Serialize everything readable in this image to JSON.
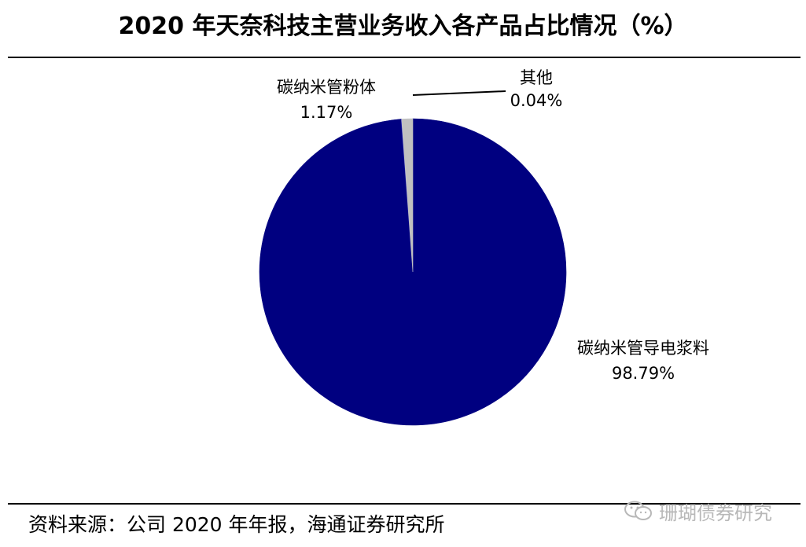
{
  "title": "2020 年天奈科技主营业务收入各产品占比情况（%）",
  "source": "资料来源：公司 2020 年年报，海通证券研究所",
  "watermark": "珊瑚债券研究",
  "watermark_icon": "wechat-icon",
  "chart_data": {
    "type": "pie",
    "slices": [
      {
        "name": "碳纳米管导电浆料",
        "value": 98.79,
        "label": "98.79%",
        "color": "#000080"
      },
      {
        "name": "其他",
        "value": 0.04,
        "label": "0.04%",
        "color": "#3333cc"
      },
      {
        "name": "碳纳米管粉体",
        "value": 1.17,
        "label": "1.17%",
        "color": "#c0c0c0"
      }
    ],
    "unit": "%",
    "start_angle": "12 o'clock",
    "direction": "clockwise",
    "legend": "none"
  }
}
